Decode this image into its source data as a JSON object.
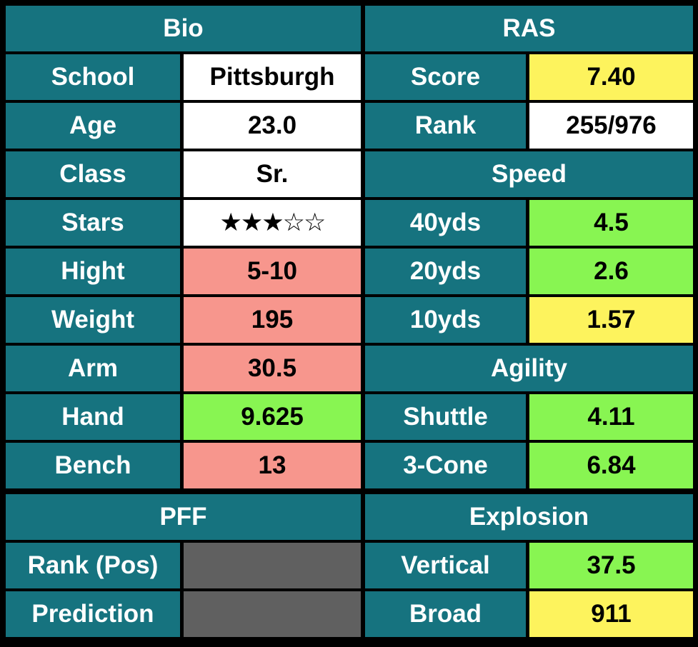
{
  "left": [
    {
      "title": "Bio",
      "rows": [
        {
          "label": "School",
          "value": "Pittsburgh",
          "color": "#ffffff"
        },
        {
          "label": "Age",
          "value": "23.0",
          "color": "#ffffff"
        },
        {
          "label": "Class",
          "value": "Sr.",
          "color": "#ffffff"
        },
        {
          "label": "Stars",
          "value": "★★★☆☆",
          "color": "#ffffff"
        },
        {
          "label": "Hight",
          "value": "5-10",
          "color": "#f7968d"
        },
        {
          "label": "Weight",
          "value": "195",
          "color": "#f7968d"
        },
        {
          "label": "Arm",
          "value": "30.5",
          "color": "#f7968d"
        },
        {
          "label": "Hand",
          "value": "9.625",
          "color": "#88f552"
        },
        {
          "label": "Bench",
          "value": "13",
          "color": "#f7968d"
        }
      ]
    },
    {
      "title": "PFF",
      "rows": [
        {
          "label": "Rank (Pos)",
          "color": "#606060"
        },
        {
          "label": "Prediction",
          "color": "#606060"
        }
      ]
    }
  ],
  "right": [
    {
      "title": "RAS",
      "rows": [
        {
          "label": "Score",
          "value": "7.40",
          "color": "#fdf35d"
        },
        {
          "label": "Rank",
          "value": "255/976",
          "color": "#ffffff"
        }
      ]
    },
    {
      "title": "Speed",
      "rows": [
        {
          "label": "40yds",
          "value": "4.5",
          "color": "#88f552"
        },
        {
          "label": "20yds",
          "value": "2.6",
          "color": "#88f552"
        },
        {
          "label": "10yds",
          "value": "1.57",
          "color": "#fdf35d"
        }
      ]
    },
    {
      "title": "Agility",
      "rows": [
        {
          "label": "Shuttle",
          "value": "4.11",
          "color": "#88f552"
        },
        {
          "label": "3-Cone",
          "value": "6.84",
          "color": "#88f552"
        }
      ]
    },
    {
      "title": "Explosion",
      "rows": [
        {
          "label": "Vertical",
          "value": "37.5",
          "color": "#88f552"
        },
        {
          "label": "Broad",
          "value": "911",
          "color": "#fdf35d"
        }
      ]
    }
  ]
}
